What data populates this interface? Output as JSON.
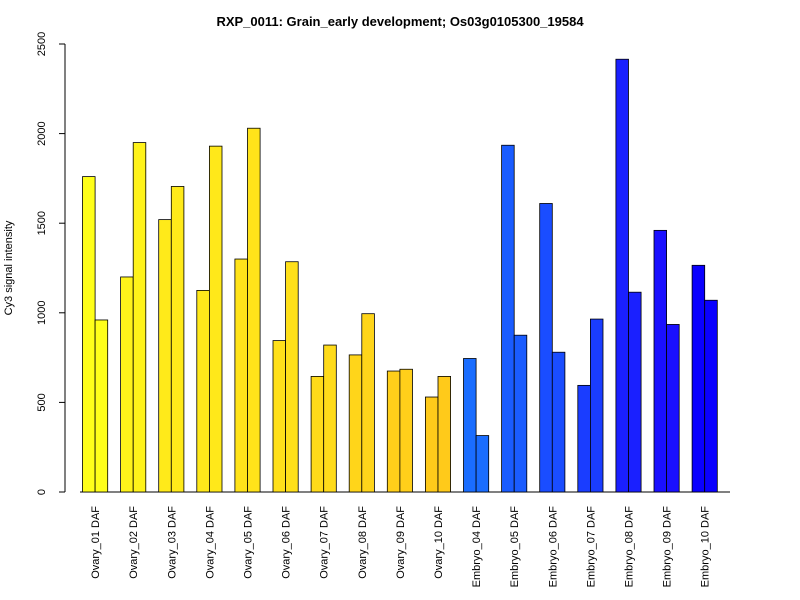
{
  "chart_data": {
    "type": "bar",
    "title": "RXP_0011: Grain_early development; Os03g0105300_19584",
    "xlabel": "",
    "ylabel": "Cy3 signal intensity",
    "ylim": [
      0,
      2500
    ],
    "yticks": [
      0,
      500,
      1000,
      1500,
      2000,
      2500
    ],
    "grid": false,
    "categories": [
      "Ovary_01 DAF",
      "Ovary_02 DAF",
      "Ovary_03 DAF",
      "Ovary_04 DAF",
      "Ovary_05 DAF",
      "Ovary_06 DAF",
      "Ovary_07 DAF",
      "Ovary_08 DAF",
      "Ovary_09 DAF",
      "Ovary_10 DAF",
      "Embryo_04 DAF",
      "Embryo_05 DAF",
      "Embryo_06 DAF",
      "Embryo_07 DAF",
      "Embryo_08 DAF",
      "Embryo_09 DAF",
      "Embryo_10 DAF"
    ],
    "colors": [
      "#FFFF1A",
      "#FFF31A",
      "#FFEA1A",
      "#FFE81A",
      "#FFE31A",
      "#FFE01A",
      "#FFDB1A",
      "#FFD51A",
      "#FFCF1A",
      "#FFCA1A",
      "#1A6DFF",
      "#1A5CFF",
      "#1A4DFF",
      "#1A3DFF",
      "#1A20FF",
      "#1A10FF",
      "#0A00FF"
    ],
    "series": [
      {
        "values": [
          1760,
          1200,
          1520,
          1125,
          1300,
          845,
          645,
          765,
          675,
          530,
          745,
          1935,
          1610,
          595,
          2415,
          1460,
          1265
        ]
      },
      {
        "values": [
          960,
          1950,
          1705,
          1930,
          2030,
          1285,
          820,
          995,
          685,
          645,
          315,
          875,
          780,
          965,
          1115,
          935,
          1070
        ]
      }
    ]
  }
}
